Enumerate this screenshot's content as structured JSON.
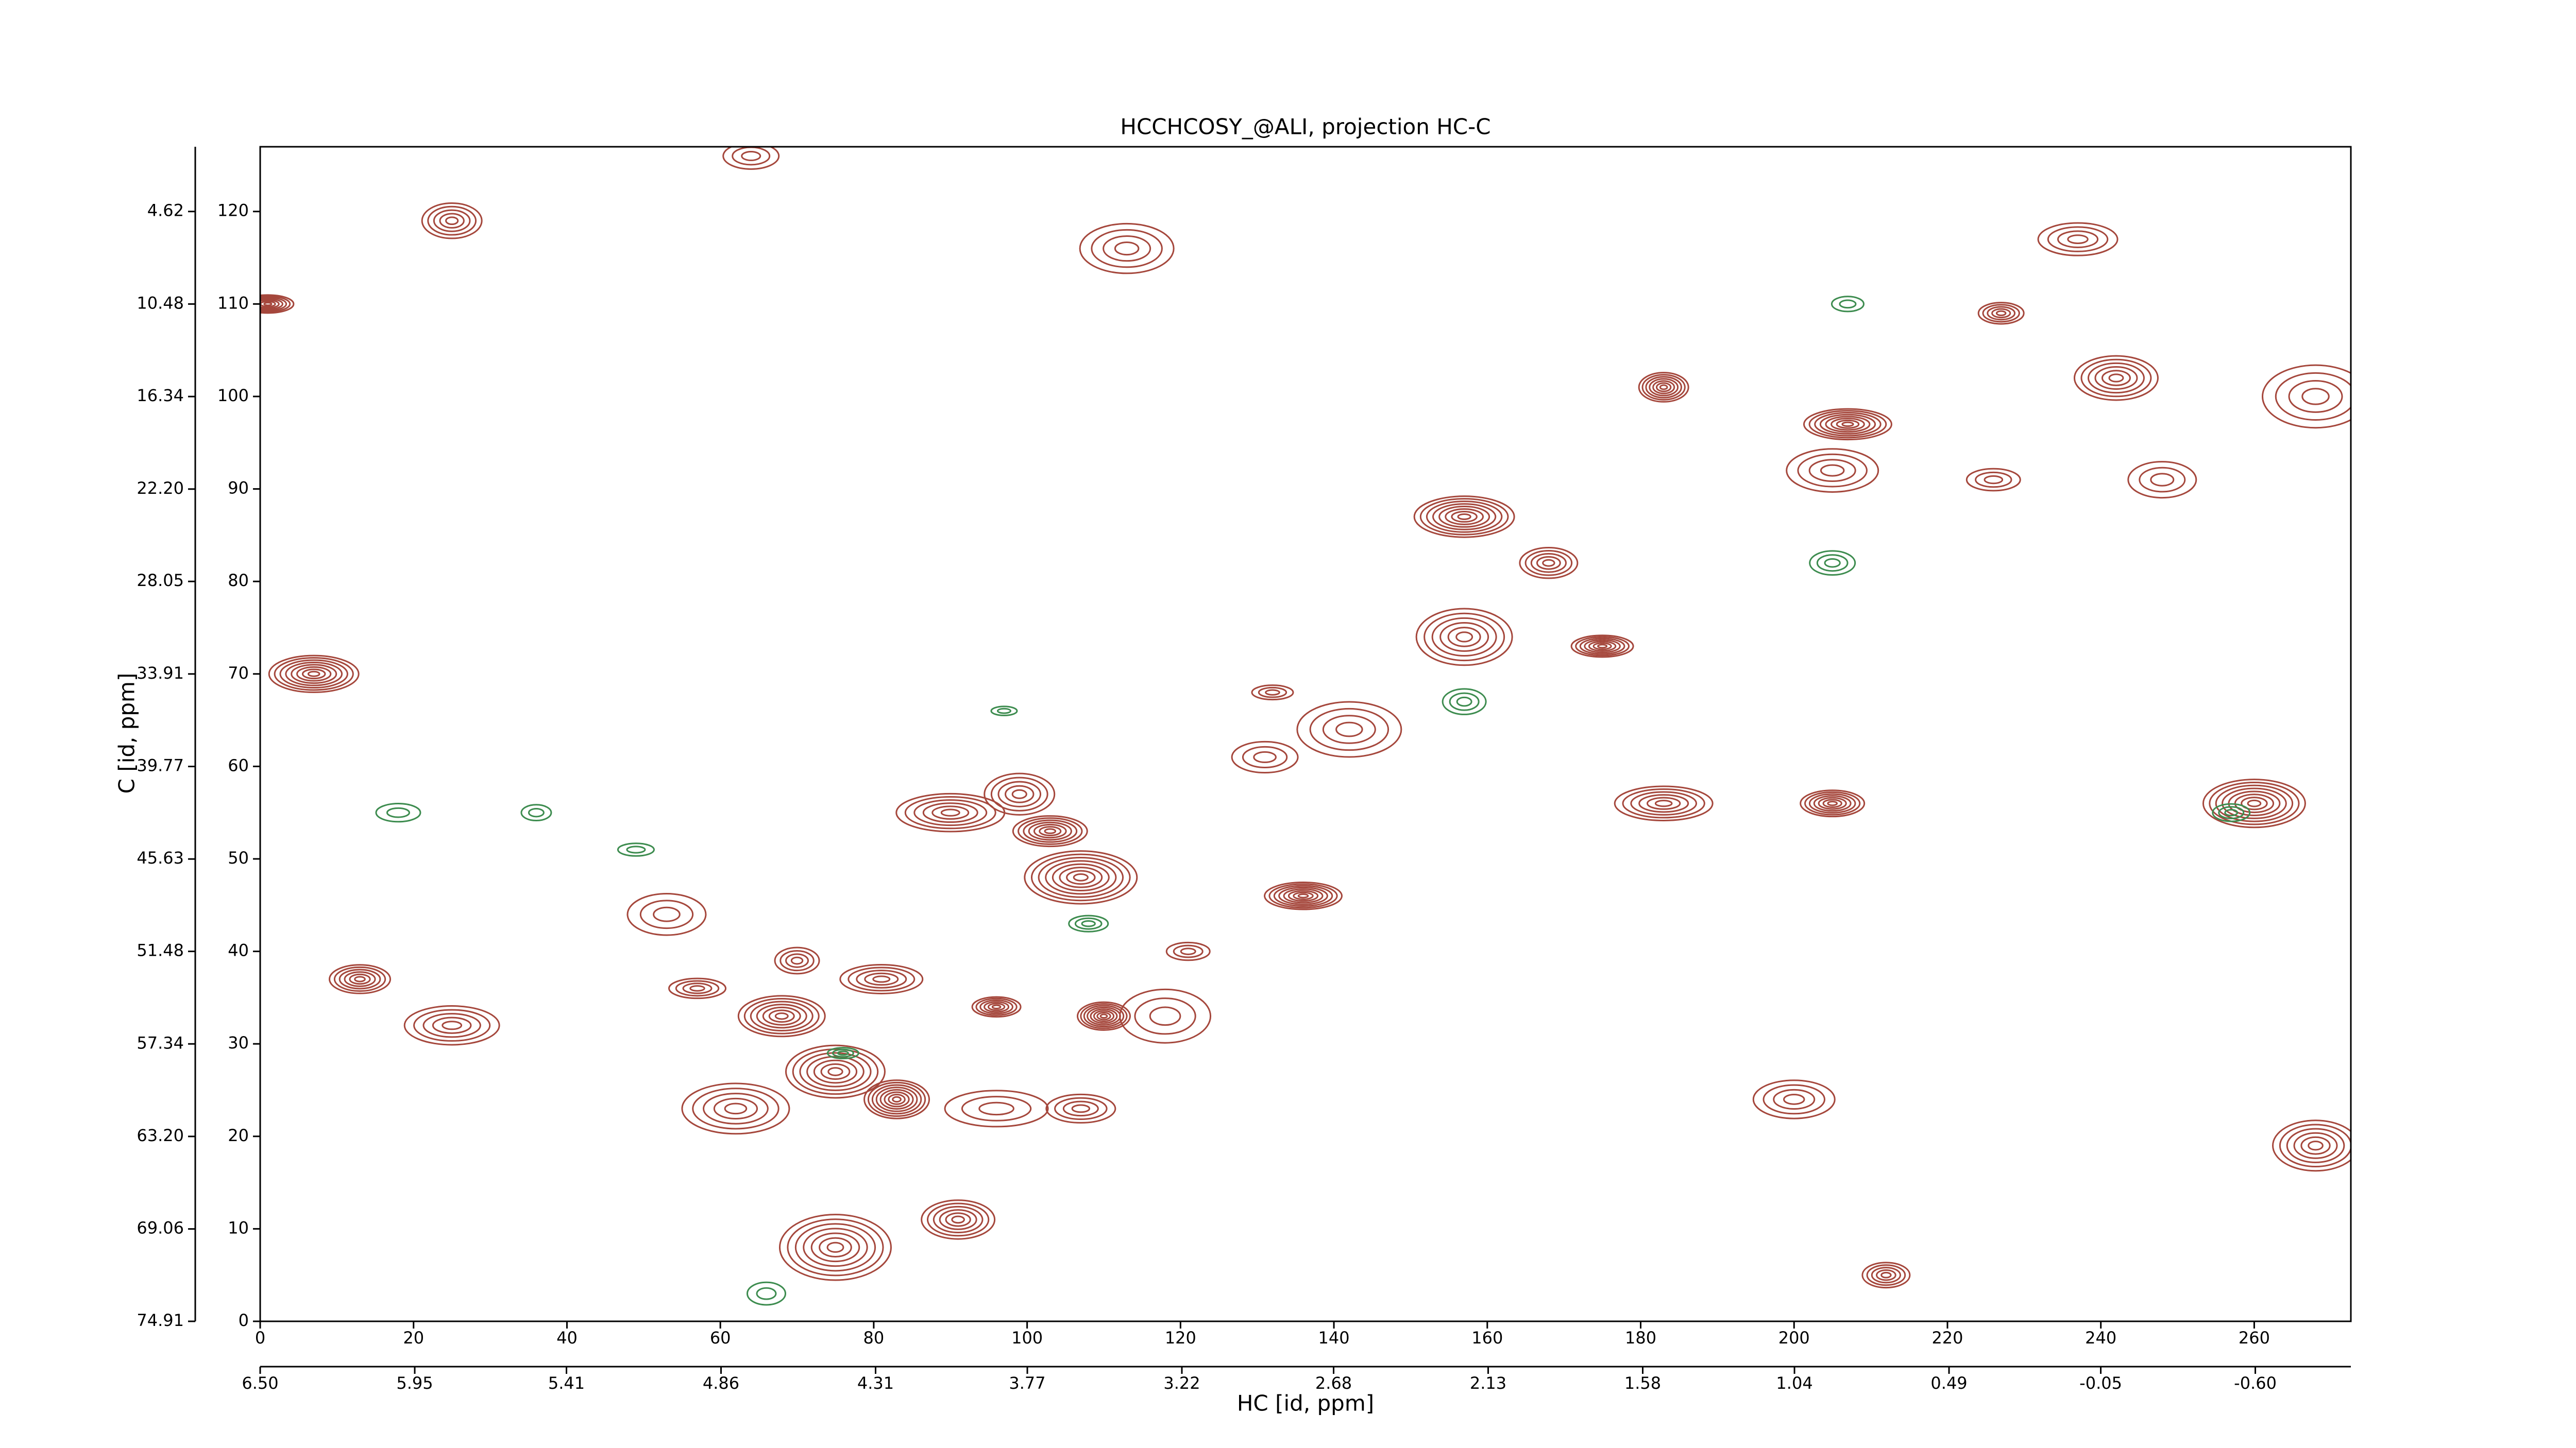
{
  "chart_data": {
    "type": "contour",
    "title": "HCCHCOSY_@ALI, projection HC-C",
    "xlabel": "HC [id, ppm]",
    "ylabel": "C [id, ppm]",
    "xlim": [
      0,
      272.6
    ],
    "xticks": [
      0,
      20,
      40,
      60,
      80,
      100,
      120,
      140,
      160,
      180,
      200,
      220,
      240,
      260
    ],
    "ylim": [
      0,
      127
    ],
    "yticks": [
      0,
      10,
      20,
      30,
      40,
      50,
      60,
      70,
      80,
      90,
      100,
      110,
      120
    ],
    "x2lim": [
      6.5,
      -0.94
    ],
    "x2ticks": [
      {
        "value": 6.5,
        "label": "6.50"
      },
      5.95,
      5.41,
      4.86,
      4.31,
      3.77,
      3.22,
      2.68,
      2.13,
      1.58,
      1.04,
      0.49,
      -0.05,
      {
        "value": -0.6,
        "label": "-0.60"
      }
    ],
    "y2lim": [
      74.91,
      0.52
    ],
    "y2ticks": [
      74.91,
      69.06,
      {
        "value": 63.2,
        "label": "63.20"
      },
      57.34,
      51.48,
      45.63,
      39.77,
      33.91,
      28.05,
      {
        "value": 22.2,
        "label": "22.20"
      },
      16.34,
      10.48,
      4.62
    ],
    "series": [
      {
        "color": "#a5473c",
        "x": [
          132,
          237,
          227,
          242,
          183,
          207,
          226,
          205,
          168,
          157,
          175,
          157,
          131,
          142,
          99,
          90,
          103,
          107,
          53,
          70,
          81,
          96,
          68,
          110,
          118,
          57,
          25,
          13,
          75,
          83,
          96,
          107,
          62,
          91,
          75,
          136,
          121,
          200,
          212,
          268,
          1,
          7,
          64,
          113,
          25,
          183,
          205,
          260,
          248,
          268
        ],
        "values": [
          68,
          117,
          109,
          102,
          101,
          97,
          91,
          92,
          82,
          74,
          73,
          87,
          61,
          64,
          57,
          55,
          53,
          48,
          44,
          39,
          37,
          34,
          33,
          33,
          33,
          36,
          32,
          37,
          27,
          24,
          23,
          23,
          23,
          11,
          8,
          46,
          40,
          24,
          5,
          19,
          110,
          70,
          126,
          116,
          119,
          56,
          56,
          56,
          91,
          100
        ]
      },
      {
        "color": "#3d8c4f",
        "x": [
          97,
          108,
          207,
          205,
          66,
          76,
          18,
          257,
          36,
          157,
          49
        ],
        "values": [
          66,
          43,
          110,
          82,
          3,
          29,
          55,
          55,
          55,
          67,
          51
        ]
      }
    ]
  }
}
